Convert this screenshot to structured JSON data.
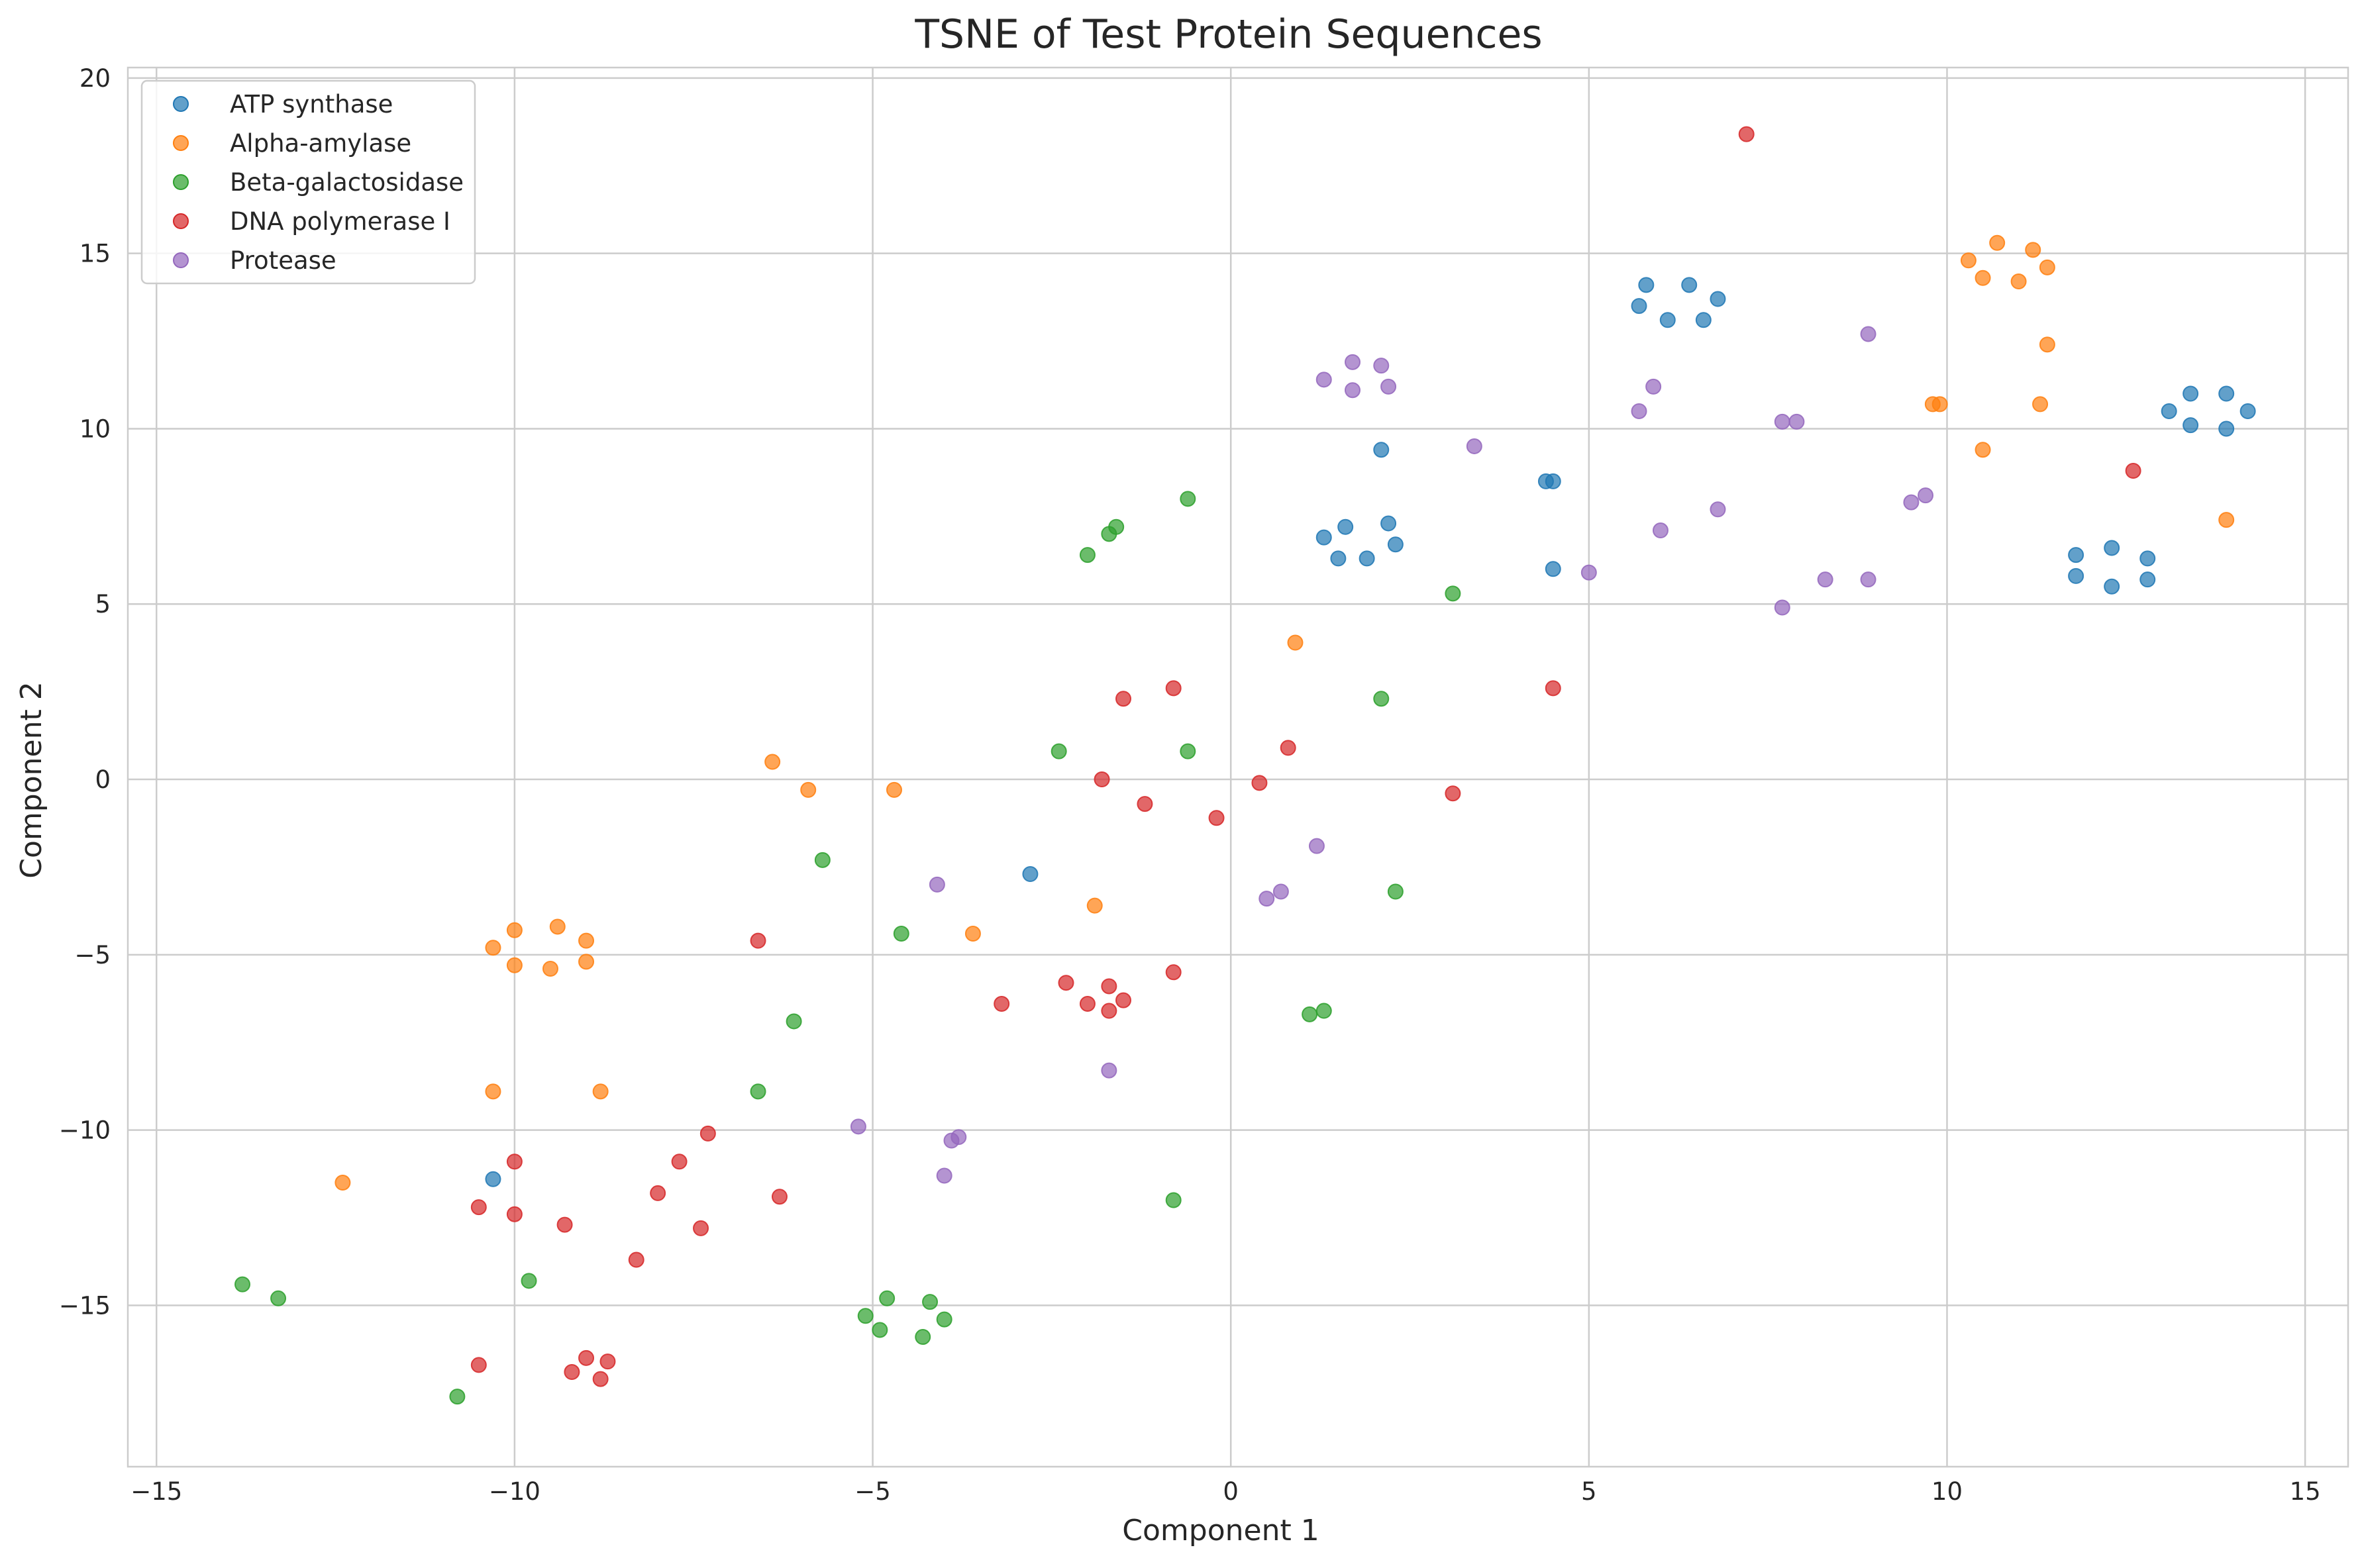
{
  "chart_data": {
    "type": "scatter",
    "title": "TSNE of Test Protein Sequences",
    "xlabel": "Component 1",
    "ylabel": "Component 2",
    "xlim": [
      -15.4,
      15.6
    ],
    "ylim": [
      -19.6,
      20.3
    ],
    "xticks": [
      -15,
      -10,
      -5,
      0,
      5,
      10,
      15
    ],
    "yticks": [
      -15,
      -10,
      -5,
      0,
      5,
      10,
      15,
      20
    ],
    "xtick_labels": [
      "−15",
      "−10",
      "−5",
      "0",
      "5",
      "10",
      "15"
    ],
    "ytick_labels": [
      "−15",
      "−10",
      "−5",
      "0",
      "5",
      "10",
      "15",
      "20"
    ],
    "grid": true,
    "legend_position": "top-left",
    "series": [
      {
        "name": "ATP synthase",
        "color": "#1f77b4",
        "points": [
          [
            5.7,
            13.5
          ],
          [
            5.8,
            14.1
          ],
          [
            6.1,
            13.1
          ],
          [
            6.4,
            14.1
          ],
          [
            6.6,
            13.1
          ],
          [
            6.8,
            13.7
          ],
          [
            1.3,
            6.9
          ],
          [
            1.5,
            6.3
          ],
          [
            1.6,
            7.2
          ],
          [
            1.9,
            6.3
          ],
          [
            2.1,
            9.4
          ],
          [
            2.2,
            7.3
          ],
          [
            2.3,
            6.7
          ],
          [
            4.4,
            8.5
          ],
          [
            4.5,
            8.5
          ],
          [
            4.5,
            6.0
          ],
          [
            11.8,
            5.8
          ],
          [
            11.8,
            6.4
          ],
          [
            12.3,
            5.5
          ],
          [
            12.3,
            6.6
          ],
          [
            12.8,
            6.3
          ],
          [
            12.8,
            5.7
          ],
          [
            13.1,
            10.5
          ],
          [
            13.4,
            11.0
          ],
          [
            13.4,
            10.1
          ],
          [
            13.9,
            11.0
          ],
          [
            13.9,
            10.0
          ],
          [
            14.2,
            10.5
          ],
          [
            -2.8,
            -2.7
          ],
          [
            -10.3,
            -11.4
          ]
        ]
      },
      {
        "name": "Alpha-amylase",
        "color": "#ff7f0e",
        "points": [
          [
            10.3,
            14.8
          ],
          [
            10.5,
            14.3
          ],
          [
            10.7,
            15.3
          ],
          [
            11.0,
            14.2
          ],
          [
            11.2,
            15.1
          ],
          [
            11.4,
            14.6
          ],
          [
            11.4,
            12.4
          ],
          [
            11.3,
            10.7
          ],
          [
            9.8,
            10.7
          ],
          [
            9.9,
            10.7
          ],
          [
            10.5,
            9.4
          ],
          [
            13.9,
            7.4
          ],
          [
            0.9,
            3.9
          ],
          [
            -6.4,
            0.5
          ],
          [
            -5.9,
            -0.3
          ],
          [
            -4.7,
            -0.3
          ],
          [
            -1.9,
            -3.6
          ],
          [
            -3.6,
            -4.4
          ],
          [
            -10.3,
            -4.8
          ],
          [
            -10.0,
            -4.3
          ],
          [
            -10.0,
            -5.3
          ],
          [
            -9.4,
            -4.2
          ],
          [
            -9.5,
            -5.4
          ],
          [
            -9.0,
            -4.6
          ],
          [
            -9.0,
            -5.2
          ],
          [
            -10.3,
            -8.9
          ],
          [
            -8.8,
            -8.9
          ],
          [
            -12.4,
            -11.5
          ]
        ]
      },
      {
        "name": "Beta-galactosidase",
        "color": "#2ca02c",
        "points": [
          [
            -0.6,
            8.0
          ],
          [
            -1.6,
            7.2
          ],
          [
            -1.7,
            7.0
          ],
          [
            -2.0,
            6.4
          ],
          [
            3.1,
            5.3
          ],
          [
            2.1,
            2.3
          ],
          [
            -2.4,
            0.8
          ],
          [
            -0.6,
            0.8
          ],
          [
            -5.7,
            -2.3
          ],
          [
            -4.6,
            -4.4
          ],
          [
            2.3,
            -3.2
          ],
          [
            -6.1,
            -6.9
          ],
          [
            1.1,
            -6.7
          ],
          [
            1.3,
            -6.6
          ],
          [
            -6.6,
            -8.9
          ],
          [
            -0.8,
            -12.0
          ],
          [
            -13.8,
            -14.4
          ],
          [
            -13.3,
            -14.8
          ],
          [
            -9.8,
            -14.3
          ],
          [
            -10.8,
            -17.6
          ],
          [
            -5.1,
            -15.3
          ],
          [
            -4.9,
            -15.7
          ],
          [
            -4.8,
            -14.8
          ],
          [
            -4.2,
            -14.9
          ],
          [
            -4.0,
            -15.4
          ],
          [
            -4.3,
            -15.9
          ]
        ]
      },
      {
        "name": "DNA polymerase I",
        "color": "#d62728",
        "points": [
          [
            7.2,
            18.4
          ],
          [
            12.6,
            8.8
          ],
          [
            4.5,
            2.6
          ],
          [
            -0.8,
            2.6
          ],
          [
            -1.5,
            2.3
          ],
          [
            0.8,
            0.9
          ],
          [
            -1.8,
            0.0
          ],
          [
            0.4,
            -0.1
          ],
          [
            -1.2,
            -0.7
          ],
          [
            -0.2,
            -1.1
          ],
          [
            3.1,
            -0.4
          ],
          [
            -6.6,
            -4.6
          ],
          [
            -3.2,
            -6.4
          ],
          [
            -2.3,
            -5.8
          ],
          [
            -2.0,
            -6.4
          ],
          [
            -1.7,
            -5.9
          ],
          [
            -1.7,
            -6.6
          ],
          [
            -1.5,
            -6.3
          ],
          [
            -0.8,
            -5.5
          ],
          [
            -6.3,
            -11.9
          ],
          [
            -7.3,
            -10.1
          ],
          [
            -7.7,
            -10.9
          ],
          [
            -8.0,
            -11.8
          ],
          [
            -7.4,
            -12.8
          ],
          [
            -10.0,
            -10.9
          ],
          [
            -10.0,
            -12.4
          ],
          [
            -10.5,
            -12.2
          ],
          [
            -9.3,
            -12.7
          ],
          [
            -8.3,
            -13.7
          ],
          [
            -10.5,
            -16.7
          ],
          [
            -9.2,
            -16.9
          ],
          [
            -9.0,
            -16.5
          ],
          [
            -8.8,
            -17.1
          ],
          [
            -8.7,
            -16.6
          ]
        ]
      },
      {
        "name": "Protease",
        "color": "#9467bd",
        "points": [
          [
            1.3,
            11.4
          ],
          [
            1.7,
            11.9
          ],
          [
            1.7,
            11.1
          ],
          [
            2.1,
            11.8
          ],
          [
            2.2,
            11.2
          ],
          [
            3.4,
            9.5
          ],
          [
            5.7,
            10.5
          ],
          [
            5.9,
            11.2
          ],
          [
            6.0,
            7.1
          ],
          [
            5.0,
            5.9
          ],
          [
            6.8,
            7.7
          ],
          [
            7.7,
            10.2
          ],
          [
            7.9,
            10.2
          ],
          [
            8.9,
            12.7
          ],
          [
            7.7,
            4.9
          ],
          [
            8.3,
            5.7
          ],
          [
            8.9,
            5.7
          ],
          [
            9.5,
            7.9
          ],
          [
            9.7,
            8.1
          ],
          [
            1.2,
            -1.9
          ],
          [
            0.5,
            -3.4
          ],
          [
            0.7,
            -3.2
          ],
          [
            -4.1,
            -3.0
          ],
          [
            -1.7,
            -8.3
          ],
          [
            -5.2,
            -9.9
          ],
          [
            -3.9,
            -10.3
          ],
          [
            -3.8,
            -10.2
          ],
          [
            -4.0,
            -11.3
          ]
        ]
      }
    ]
  }
}
